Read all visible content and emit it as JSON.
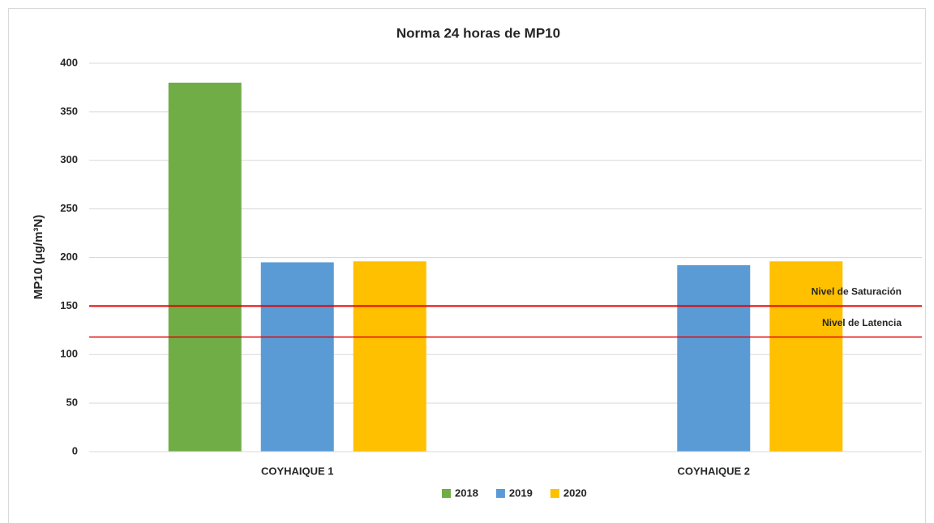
{
  "chart_data": {
    "type": "bar",
    "title": "Norma 24 horas de MP10",
    "y_label": "MP10 (µg/m³N)",
    "categories": [
      "COYHAIQUE 1",
      "COYHAIQUE 2"
    ],
    "series": [
      {
        "name": "2018",
        "color": "#70ad47",
        "values": [
          380,
          null
        ]
      },
      {
        "name": "2019",
        "color": "#5b9bd5",
        "values": [
          195,
          192
        ]
      },
      {
        "name": "2020",
        "color": "#ffc000",
        "values": [
          196,
          196
        ]
      }
    ],
    "reference_lines": [
      {
        "label": "Nivel de Saturación",
        "value": 150,
        "color": "#e00000"
      },
      {
        "label": "Nivel de Latencia",
        "value": 118,
        "color": "#e00000"
      }
    ],
    "ylim": [
      0,
      400
    ],
    "yticks": [
      0,
      50,
      100,
      150,
      200,
      250,
      300,
      350,
      400
    ],
    "grid": true,
    "legend": "bottom"
  }
}
